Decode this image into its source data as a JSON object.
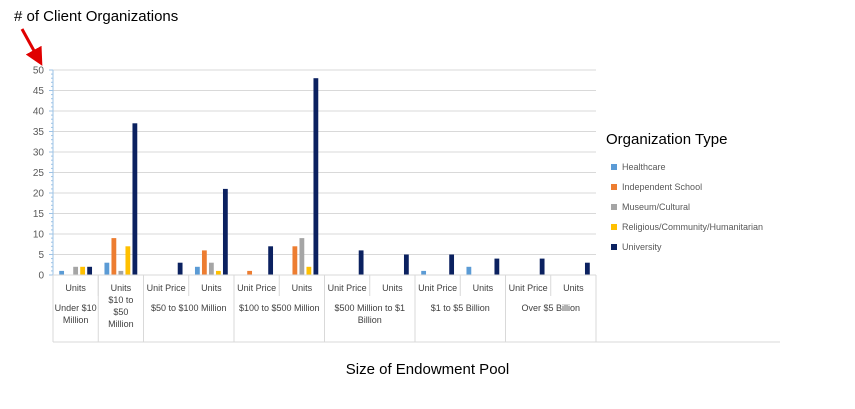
{
  "annotation": {
    "label": "# of Client Organizations"
  },
  "chart_data": {
    "type": "bar",
    "title": "",
    "xlabel": "Size of Endowment Pool",
    "ylabel": "# of Client Organizations",
    "ylim": [
      0,
      50
    ],
    "ytick_step": 5,
    "grid": true,
    "legend_title": "Organization Type",
    "legend_position": "right",
    "groups": [
      {
        "name": [
          "Under $10",
          "Million"
        ],
        "subcats": [
          {
            "label": [
              "Units"
            ],
            "values": [
              1,
              0,
              2,
              2,
              2
            ]
          }
        ]
      },
      {
        "name": [],
        "subcats": [
          {
            "label": [
              "Units",
              "$10 to",
              "$50",
              "Million"
            ],
            "values": [
              3,
              9,
              1,
              7,
              37
            ]
          }
        ]
      },
      {
        "name": [
          "$50 to $100 Million"
        ],
        "subcats": [
          {
            "label": [
              "Unit Price"
            ],
            "values": [
              0,
              0,
              0,
              0,
              3
            ]
          },
          {
            "label": [
              "Units"
            ],
            "values": [
              2,
              6,
              3,
              1,
              21
            ]
          }
        ]
      },
      {
        "name": [
          "$100 to $500 Million"
        ],
        "subcats": [
          {
            "label": [
              "Unit Price"
            ],
            "values": [
              0,
              1,
              0,
              0,
              7
            ]
          },
          {
            "label": [
              "Units"
            ],
            "values": [
              0,
              7,
              9,
              2,
              48
            ]
          }
        ]
      },
      {
        "name": [
          "$500 Million to $1",
          "Billion"
        ],
        "subcats": [
          {
            "label": [
              "Unit Price"
            ],
            "values": [
              0,
              0,
              0,
              0,
              6
            ]
          },
          {
            "label": [
              "Units"
            ],
            "values": [
              0,
              0,
              0,
              0,
              5
            ]
          }
        ]
      },
      {
        "name": [
          "$1 to $5 Billion"
        ],
        "subcats": [
          {
            "label": [
              "Unit Price"
            ],
            "values": [
              1,
              0,
              0,
              0,
              5
            ]
          },
          {
            "label": [
              "Units"
            ],
            "values": [
              2,
              0,
              0,
              0,
              4
            ]
          }
        ]
      },
      {
        "name": [
          "Over $5 Billion"
        ],
        "subcats": [
          {
            "label": [
              "Unit Price"
            ],
            "values": [
              0,
              0,
              0,
              0,
              4
            ]
          },
          {
            "label": [
              "Units"
            ],
            "values": [
              0,
              0,
              0,
              0,
              3
            ]
          }
        ]
      }
    ],
    "series": [
      {
        "name": "Healthcare",
        "color": "#5b9bd5"
      },
      {
        "name": "Independent School",
        "color": "#ed7d31"
      },
      {
        "name": "Museum/Cultural",
        "color": "#a5a5a5"
      },
      {
        "name": "Religious/Community/Humanitarian",
        "color": "#ffc000"
      },
      {
        "name": "University",
        "color": "#0b2160"
      }
    ]
  }
}
